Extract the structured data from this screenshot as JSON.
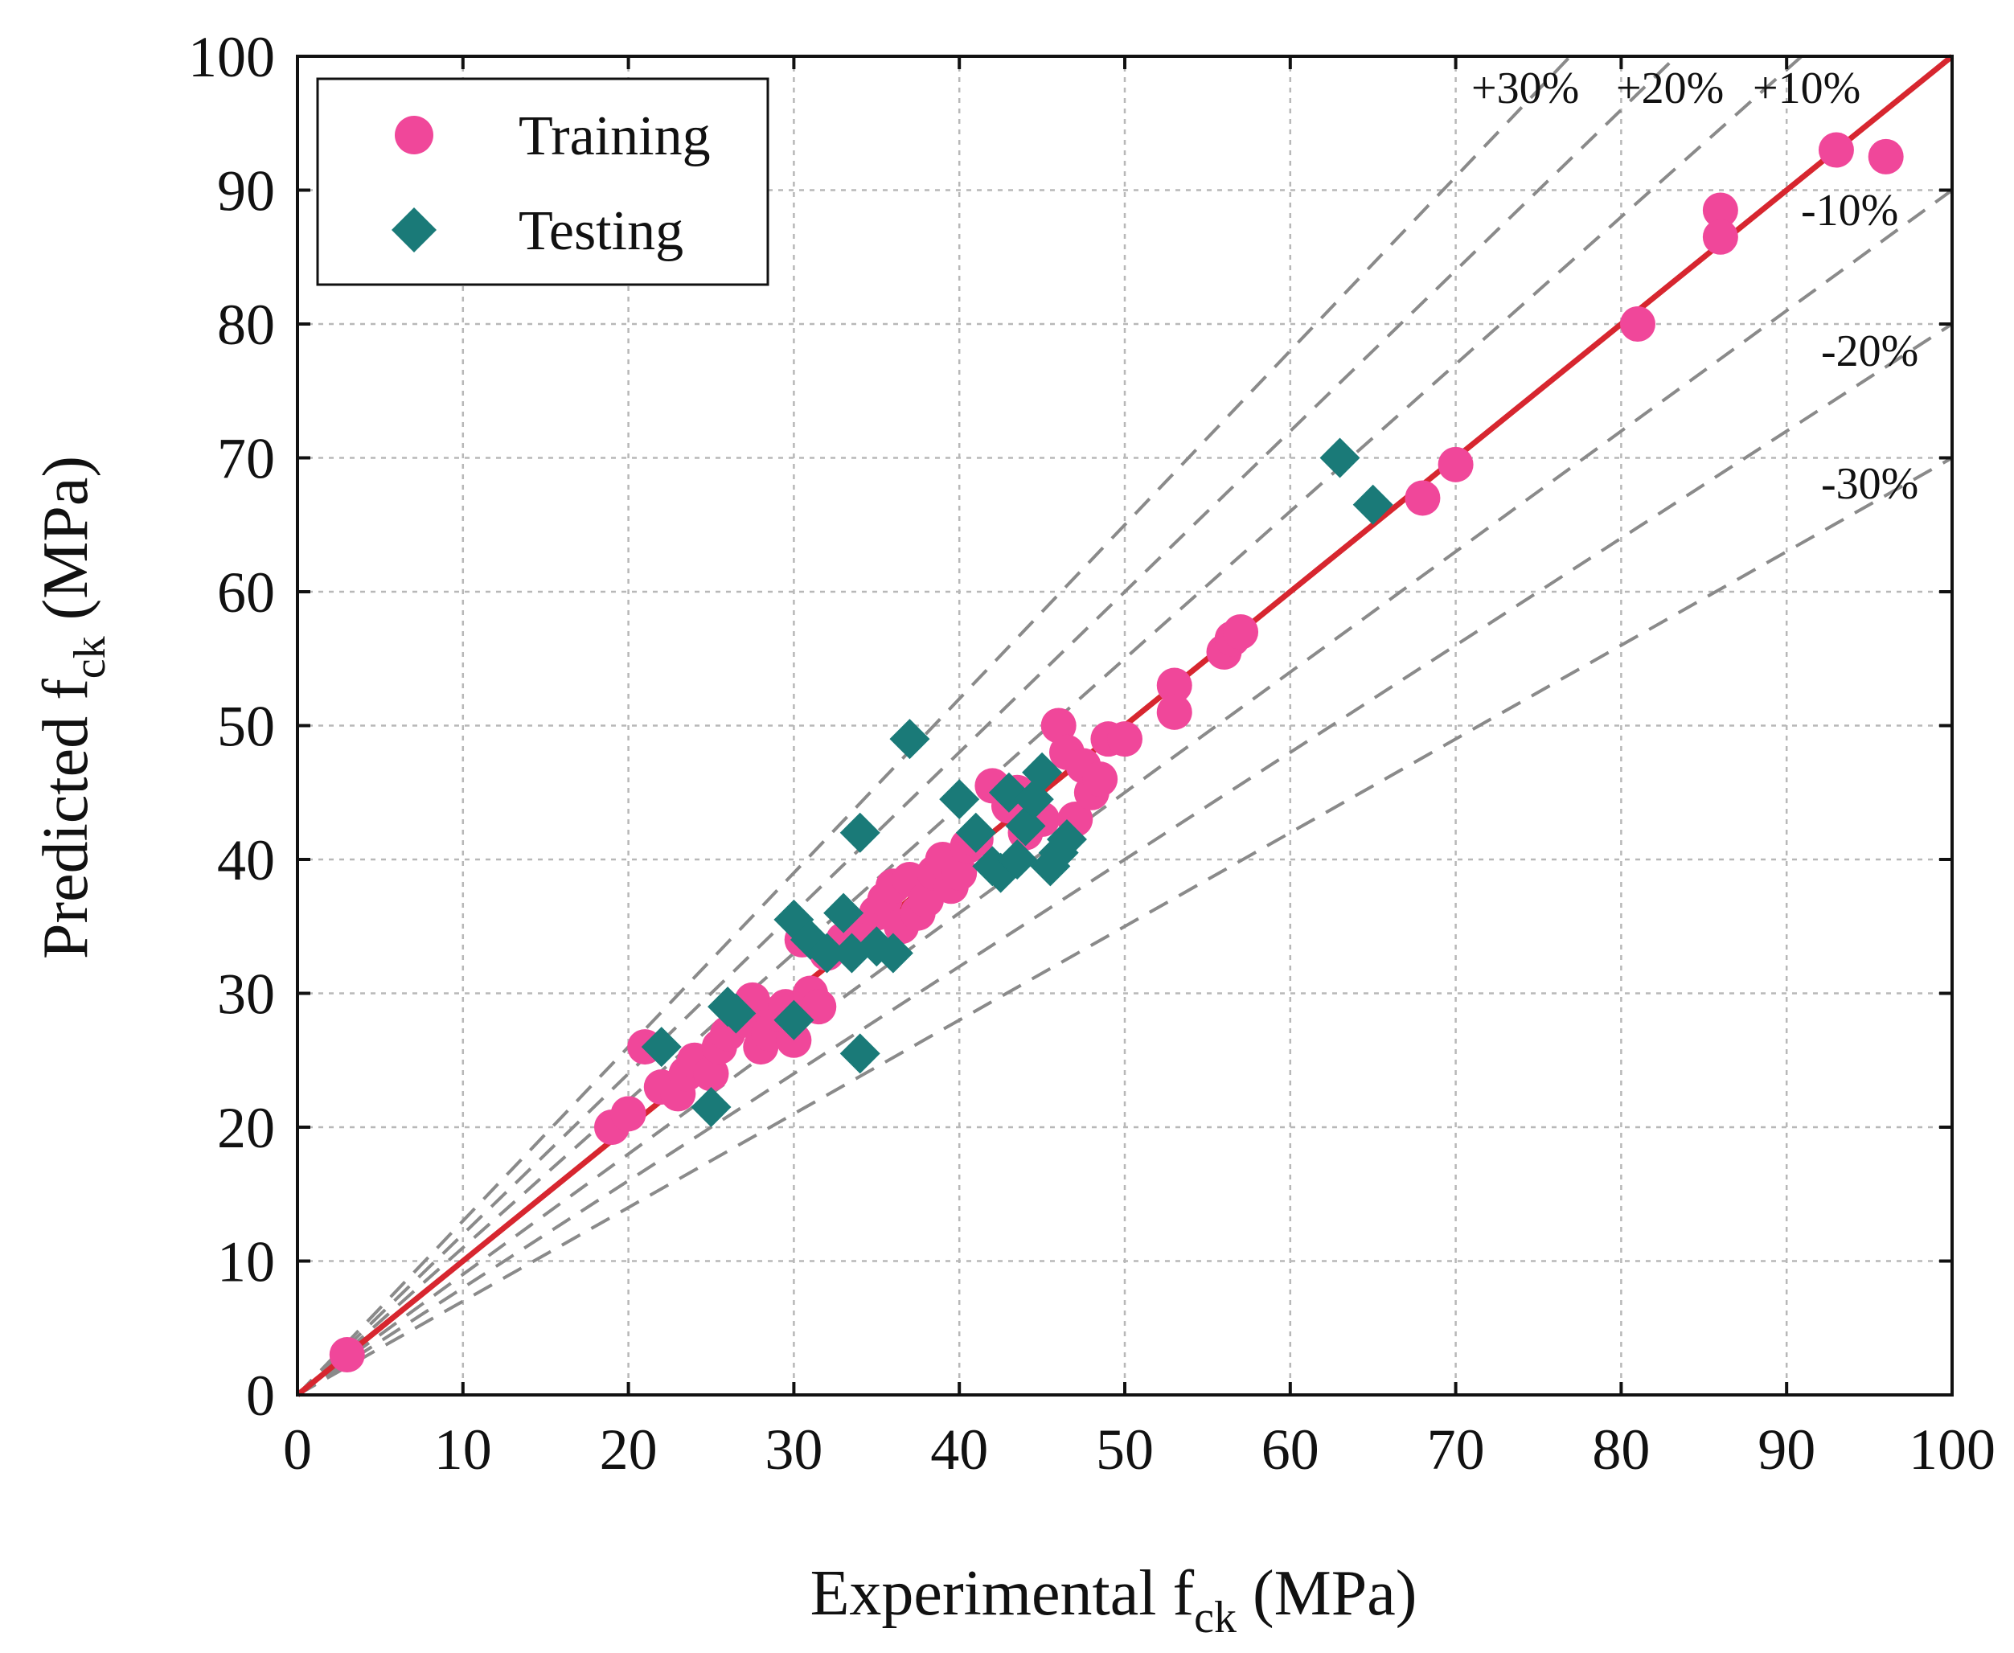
{
  "colors": {
    "training": "#f0479a",
    "testing": "#1a7a78",
    "ideal_line": "#d7262f",
    "band_lines": "#8a8a8a",
    "grid": "#b8b8b8"
  },
  "chart_data": {
    "type": "scatter",
    "xlabel": "Experimental f",
    "xlabel_sub": "ck",
    "xlabel_suffix": "(MPa)",
    "ylabel": "Predicted f",
    "ylabel_sub": "ck",
    "ylabel_suffix": "(MPa)",
    "xlim": [
      0,
      100
    ],
    "ylim": [
      0,
      100
    ],
    "xticks": [
      0,
      10,
      20,
      30,
      40,
      50,
      60,
      70,
      80,
      90,
      100
    ],
    "yticks": [
      0,
      10,
      20,
      30,
      40,
      50,
      60,
      70,
      80,
      90,
      100
    ],
    "grid": true,
    "legend_position": "top-left",
    "ideal_line": [
      [
        0,
        0
      ],
      [
        100,
        100
      ]
    ],
    "bands": [
      {
        "label": "+30%",
        "factor": 1.3
      },
      {
        "label": "+20%",
        "factor": 1.2
      },
      {
        "label": "+10%",
        "factor": 1.1
      },
      {
        "label": "-10%",
        "factor": 0.9
      },
      {
        "label": "-20%",
        "factor": 0.8
      },
      {
        "label": "-30%",
        "factor": 0.7
      }
    ],
    "band_label_text": {
      "top": [
        "+30%",
        "+20%",
        "+10%"
      ],
      "right": [
        "-10%",
        "-20%",
        "-30%"
      ]
    },
    "series": [
      {
        "name": "Training",
        "marker": "circle",
        "points": [
          [
            3,
            3
          ],
          [
            19,
            20
          ],
          [
            20,
            21
          ],
          [
            21,
            26
          ],
          [
            22,
            23
          ],
          [
            23,
            22.5
          ],
          [
            23.5,
            24
          ],
          [
            24,
            25
          ],
          [
            25,
            24
          ],
          [
            25.5,
            26
          ],
          [
            26,
            27
          ],
          [
            27,
            28
          ],
          [
            27.5,
            29.5
          ],
          [
            28,
            26
          ],
          [
            28.5,
            27
          ],
          [
            29,
            28.5
          ],
          [
            29.5,
            29
          ],
          [
            30,
            26.5
          ],
          [
            30.5,
            34
          ],
          [
            31,
            30
          ],
          [
            31.5,
            29
          ],
          [
            32,
            33
          ],
          [
            33,
            34
          ],
          [
            34,
            35
          ],
          [
            35,
            36
          ],
          [
            35.5,
            37
          ],
          [
            36,
            38
          ],
          [
            36.5,
            35
          ],
          [
            37,
            38.5
          ],
          [
            37.5,
            36
          ],
          [
            38,
            37
          ],
          [
            38.5,
            39
          ],
          [
            39,
            40
          ],
          [
            39.5,
            38
          ],
          [
            40,
            39
          ],
          [
            40.5,
            41
          ],
          [
            41,
            41.5
          ],
          [
            42,
            45.5
          ],
          [
            43,
            44
          ],
          [
            43.5,
            45
          ],
          [
            44,
            42
          ],
          [
            45,
            43
          ],
          [
            46,
            50
          ],
          [
            46.5,
            48
          ],
          [
            47,
            43
          ],
          [
            47.5,
            47
          ],
          [
            48,
            45
          ],
          [
            48.5,
            46
          ],
          [
            49,
            49
          ],
          [
            50,
            49
          ],
          [
            53,
            53
          ],
          [
            53,
            51
          ],
          [
            56,
            55.5
          ],
          [
            56.5,
            56.5
          ],
          [
            57,
            57
          ],
          [
            68,
            67
          ],
          [
            70,
            69.5
          ],
          [
            81,
            80
          ],
          [
            86,
            88.5
          ],
          [
            86,
            86.5
          ],
          [
            93,
            93
          ],
          [
            96,
            92.5
          ]
        ]
      },
      {
        "name": "Testing",
        "marker": "diamond",
        "points": [
          [
            22,
            26
          ],
          [
            25,
            21.5
          ],
          [
            26,
            29
          ],
          [
            26.5,
            28.5
          ],
          [
            30,
            35.5
          ],
          [
            30,
            28
          ],
          [
            31,
            34
          ],
          [
            32,
            33
          ],
          [
            33,
            36
          ],
          [
            33.5,
            33
          ],
          [
            34,
            42
          ],
          [
            34,
            25.5
          ],
          [
            35,
            33.5
          ],
          [
            36,
            33
          ],
          [
            37,
            49
          ],
          [
            40,
            44.5
          ],
          [
            41,
            42
          ],
          [
            42,
            39.5
          ],
          [
            42.5,
            39
          ],
          [
            43,
            45
          ],
          [
            43.5,
            40
          ],
          [
            44,
            42.5
          ],
          [
            44.5,
            44.5
          ],
          [
            45,
            46.5
          ],
          [
            45.5,
            39.5
          ],
          [
            46,
            40.5
          ],
          [
            46.5,
            41.5
          ],
          [
            63,
            70
          ],
          [
            65,
            66.5
          ]
        ]
      }
    ]
  }
}
